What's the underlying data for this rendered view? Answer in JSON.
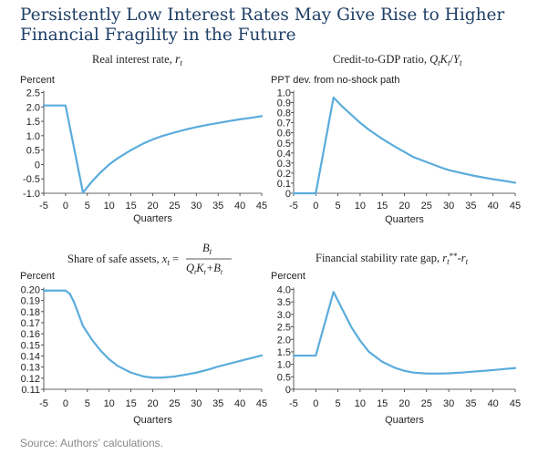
{
  "title_line1": "Persistently Low Interest Rates May Give Rise to Higher",
  "title_line2": "Financial Fragility in the Future",
  "source": "Source: Authors’ calculations.",
  "chart_data": [
    {
      "type": "line",
      "title": "Real interest rate, r_t",
      "ylabel": "Percent",
      "xlabel": "Quarters",
      "xlim": [
        -5,
        45
      ],
      "ylim": [
        -1.0,
        2.5
      ],
      "x_ticks": [
        -5,
        0,
        5,
        10,
        15,
        20,
        25,
        30,
        35,
        40,
        45
      ],
      "y_ticks": [
        -1.0,
        -0.5,
        0,
        0.5,
        1.0,
        1.5,
        2.0,
        2.5
      ],
      "y_tick_labels": [
        "-1.0",
        "-0.5",
        "0",
        "0.5",
        "1.0",
        "1.5",
        "2.0",
        "2.5"
      ],
      "series": [
        {
          "x": [
            -5,
            0,
            4,
            6,
            8,
            10,
            12,
            15,
            18,
            20,
            22,
            25,
            28,
            30,
            33,
            35,
            38,
            40,
            43,
            45
          ],
          "y": [
            2.05,
            2.05,
            -0.98,
            -0.6,
            -0.28,
            0.0,
            0.22,
            0.5,
            0.74,
            0.87,
            0.98,
            1.11,
            1.23,
            1.3,
            1.39,
            1.44,
            1.52,
            1.57,
            1.63,
            1.68
          ]
        }
      ]
    },
    {
      "type": "line",
      "title": "Credit-to-GDP ratio, Q_t K_t / Y_t",
      "ylabel": "PPT dev. from no-shock path",
      "xlabel": "Quarters",
      "xlim": [
        -5,
        45
      ],
      "ylim": [
        0,
        1.0
      ],
      "x_ticks": [
        -5,
        0,
        5,
        10,
        15,
        20,
        25,
        30,
        35,
        40,
        45
      ],
      "y_ticks": [
        0,
        0.1,
        0.2,
        0.3,
        0.4,
        0.5,
        0.6,
        0.7,
        0.8,
        0.9,
        1.0
      ],
      "y_tick_labels": [
        "0",
        "0.1",
        "0.2",
        "0.3",
        "0.4",
        "0.5",
        "0.6",
        "0.7",
        "0.8",
        "0.9",
        "1.0"
      ],
      "series": [
        {
          "x": [
            -5,
            0,
            4,
            6,
            8,
            10,
            12,
            15,
            18,
            20,
            22,
            25,
            28,
            30,
            33,
            35,
            38,
            40,
            43,
            45
          ],
          "y": [
            0,
            0,
            0.95,
            0.86,
            0.78,
            0.7,
            0.63,
            0.54,
            0.46,
            0.41,
            0.36,
            0.31,
            0.26,
            0.23,
            0.2,
            0.18,
            0.155,
            0.14,
            0.12,
            0.105
          ]
        }
      ]
    },
    {
      "type": "line",
      "title": "Share of safe assets, x_t = B_t / (Q_t K_t + B_t)",
      "ylabel": "Percent",
      "xlabel": "Quarters",
      "xlim": [
        -5,
        45
      ],
      "ylim": [
        0.11,
        0.2
      ],
      "x_ticks": [
        -5,
        0,
        5,
        10,
        15,
        20,
        25,
        30,
        35,
        40,
        45
      ],
      "y_ticks": [
        0.11,
        0.12,
        0.13,
        0.14,
        0.15,
        0.16,
        0.17,
        0.18,
        0.19,
        0.2
      ],
      "y_tick_labels": [
        "0.11",
        "0.12",
        "0.13",
        "0.14",
        "0.15",
        "0.16",
        "0.17",
        "0.18",
        "0.19",
        "0.20"
      ],
      "series": [
        {
          "x": [
            -5,
            0,
            1,
            2,
            4,
            6,
            8,
            10,
            12,
            15,
            18,
            20,
            22,
            25,
            28,
            30,
            33,
            35,
            38,
            40,
            43,
            45
          ],
          "y": [
            0.199,
            0.199,
            0.196,
            0.188,
            0.167,
            0.155,
            0.145,
            0.137,
            0.131,
            0.125,
            0.1215,
            0.1205,
            0.1205,
            0.1215,
            0.1235,
            0.125,
            0.128,
            0.1305,
            0.1335,
            0.1355,
            0.1385,
            0.1405
          ]
        }
      ]
    },
    {
      "type": "line",
      "title": "Financial stability rate gap, r_t** - r_t",
      "ylabel": "Percent",
      "xlabel": "Quarters",
      "xlim": [
        -5,
        45
      ],
      "ylim": [
        0,
        4.0
      ],
      "x_ticks": [
        -5,
        0,
        5,
        10,
        15,
        20,
        25,
        30,
        35,
        40,
        45
      ],
      "y_ticks": [
        0,
        0.5,
        1.0,
        1.5,
        2.0,
        2.5,
        3.0,
        3.5,
        4.0
      ],
      "y_tick_labels": [
        "0",
        "0.5",
        "1.0",
        "1.5",
        "2.0",
        "2.5",
        "3.0",
        "3.5",
        "4.0"
      ],
      "series": [
        {
          "x": [
            -5,
            0,
            4,
            6,
            8,
            10,
            12,
            15,
            18,
            20,
            22,
            25,
            28,
            30,
            33,
            35,
            38,
            40,
            43,
            45
          ],
          "y": [
            1.35,
            1.35,
            3.9,
            3.2,
            2.5,
            1.95,
            1.5,
            1.1,
            0.85,
            0.74,
            0.67,
            0.63,
            0.63,
            0.64,
            0.67,
            0.7,
            0.74,
            0.77,
            0.82,
            0.85
          ]
        }
      ]
    }
  ]
}
